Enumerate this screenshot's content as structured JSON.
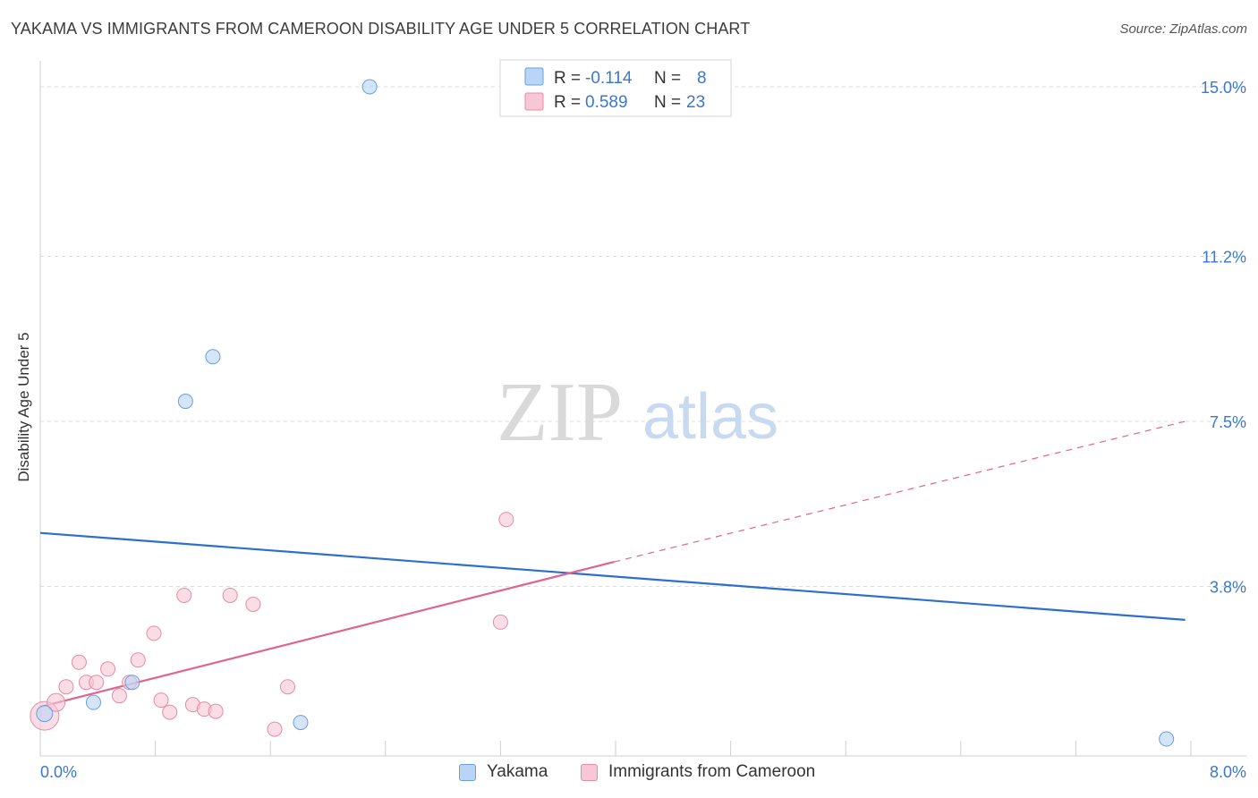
{
  "title": "YAKAMA VS IMMIGRANTS FROM CAMEROON DISABILITY AGE UNDER 5 CORRELATION CHART",
  "source": "Source: ZipAtlas.com",
  "watermark": {
    "zip": "ZIP",
    "atlas": "atlas"
  },
  "colors": {
    "blue_fill": "#b9d4f5",
    "blue_stroke": "#6a9fd8",
    "blue_line": "#2d6fce",
    "pink_fill": "#f8c7d6",
    "pink_stroke": "#e58aa8",
    "pink_line": "#e0648e",
    "value_text": "#3a78c9"
  },
  "legend_top": [
    {
      "r_label": "R = ",
      "r_value": "-0.114",
      "n_label": "N = ",
      "n_value": "8",
      "color": "blue"
    },
    {
      "r_label": "R = ",
      "r_value": "0.589",
      "n_label": "N = ",
      "n_value": "23",
      "color": "pink"
    }
  ],
  "legend_bottom": [
    "Yakama",
    "Immigrants from Cameroon"
  ],
  "chart_data": {
    "type": "scatter",
    "ylabel": "Disability Age Under 5",
    "xlabel": "",
    "xlim": [
      0,
      8
    ],
    "ylim": [
      0,
      15
    ],
    "x_tick_labels": [
      "0.0%",
      "8.0%"
    ],
    "y_ticks": [
      3.8,
      7.5,
      11.2,
      15.0
    ],
    "y_tick_labels": [
      "3.8%",
      "7.5%",
      "11.2%",
      "15.0%"
    ],
    "grid": "horizontal dashed",
    "series": [
      {
        "name": "Yakama",
        "color": "blue",
        "points": [
          {
            "x": 0.03,
            "y": 0.95,
            "r": 9
          },
          {
            "x": 0.37,
            "y": 1.2,
            "r": 8
          },
          {
            "x": 0.64,
            "y": 1.65,
            "r": 8
          },
          {
            "x": 1.01,
            "y": 7.95,
            "r": 8
          },
          {
            "x": 1.2,
            "y": 8.95,
            "r": 8
          },
          {
            "x": 1.81,
            "y": 0.75,
            "r": 8
          },
          {
            "x": 2.29,
            "y": 15.0,
            "r": 8
          },
          {
            "x": 7.83,
            "y": 0.38,
            "r": 8
          }
        ],
        "trend": {
          "x0": 0,
          "y0": 5.0,
          "x1": 7.96,
          "y1": 3.05
        }
      },
      {
        "name": "Immigrants from Cameroon",
        "color": "pink",
        "points": [
          {
            "x": 0.03,
            "y": 0.9,
            "r": 16
          },
          {
            "x": 0.11,
            "y": 1.2,
            "r": 10
          },
          {
            "x": 0.18,
            "y": 1.55,
            "r": 8
          },
          {
            "x": 0.27,
            "y": 2.1,
            "r": 8
          },
          {
            "x": 0.32,
            "y": 1.65,
            "r": 8
          },
          {
            "x": 0.39,
            "y": 1.65,
            "r": 8
          },
          {
            "x": 0.47,
            "y": 1.95,
            "r": 8
          },
          {
            "x": 0.55,
            "y": 1.35,
            "r": 8
          },
          {
            "x": 0.62,
            "y": 1.65,
            "r": 8
          },
          {
            "x": 0.68,
            "y": 2.15,
            "r": 8
          },
          {
            "x": 0.79,
            "y": 2.75,
            "r": 8
          },
          {
            "x": 0.84,
            "y": 1.25,
            "r": 8
          },
          {
            "x": 0.9,
            "y": 0.98,
            "r": 8
          },
          {
            "x": 1.0,
            "y": 3.6,
            "r": 8
          },
          {
            "x": 1.06,
            "y": 1.15,
            "r": 8
          },
          {
            "x": 1.14,
            "y": 1.05,
            "r": 8
          },
          {
            "x": 1.22,
            "y": 1.0,
            "r": 8
          },
          {
            "x": 1.32,
            "y": 3.6,
            "r": 8
          },
          {
            "x": 1.48,
            "y": 3.4,
            "r": 8
          },
          {
            "x": 1.63,
            "y": 0.6,
            "r": 8
          },
          {
            "x": 1.72,
            "y": 1.55,
            "r": 8
          },
          {
            "x": 3.2,
            "y": 3.0,
            "r": 8
          },
          {
            "x": 3.24,
            "y": 5.3,
            "r": 8
          }
        ],
        "trend": {
          "x0": 0,
          "y0": 1.1,
          "x1": 3.99,
          "y1": 4.35,
          "x_dash_end": 7.96,
          "y_dash_end": 7.5
        }
      }
    ]
  }
}
